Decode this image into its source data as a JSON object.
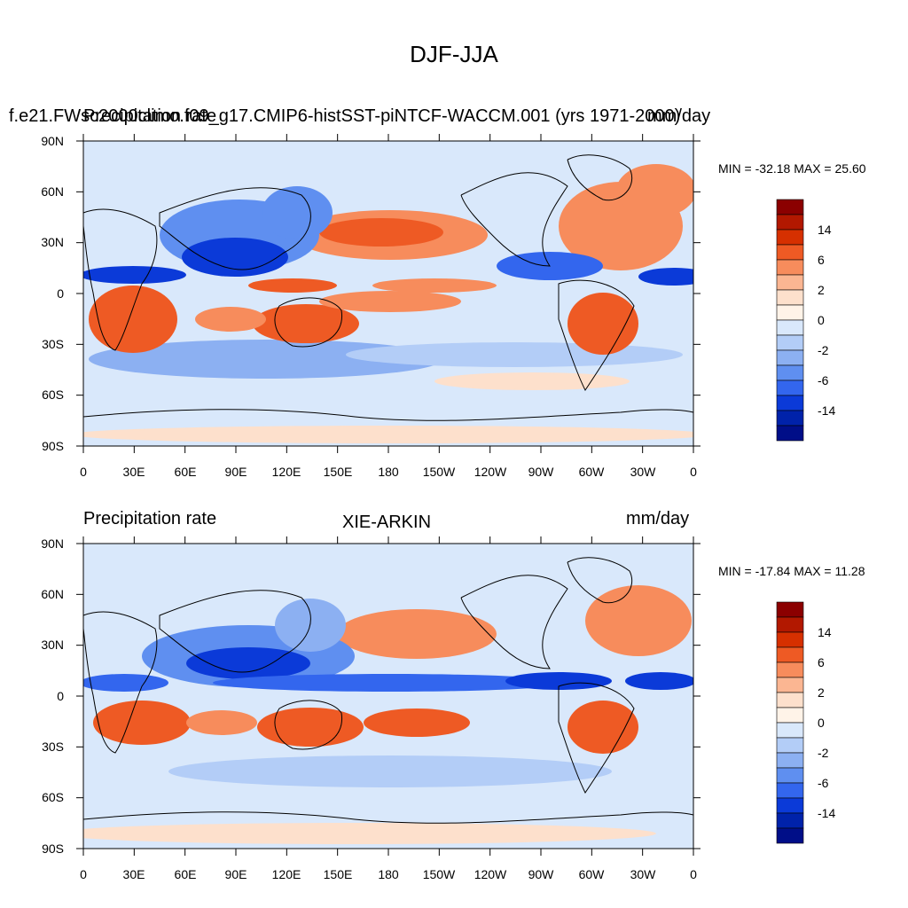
{
  "title": "DJF-JJA",
  "units_note": "mm/day",
  "panels": [
    {
      "id": "model",
      "left_label": "Precipitation rate",
      "center_label": "f.e21.FWsc2000climo.f09_g17.CMIP6-histSST-piNTCF-WACCM.001 (yrs 1971-2000)",
      "right_label": "mm/day",
      "stats": "MIN = -32.18 MAX =  25.60",
      "min": -32.18,
      "max": 25.6
    },
    {
      "id": "obs",
      "left_label": "Precipitation rate",
      "center_label": "XIE-ARKIN",
      "right_label": "mm/day",
      "stats": "MIN = -17.84 MAX =  11.28",
      "min": -17.84,
      "max": 11.28
    }
  ],
  "axes": {
    "lat_labels": [
      "90N",
      "60N",
      "30N",
      "0",
      "30S",
      "60S",
      "90S"
    ],
    "lon_labels": [
      "0",
      "30E",
      "60E",
      "90E",
      "120E",
      "150E",
      "180",
      "150W",
      "120W",
      "90W",
      "60W",
      "30W",
      "0"
    ]
  },
  "colorbar": {
    "labels": [
      "14",
      "6",
      "2",
      "0",
      "-2",
      "-6",
      "-14"
    ],
    "colors": [
      "#8b0000",
      "#b21800",
      "#d63000",
      "#ee5a24",
      "#f78c5c",
      "#fbb692",
      "#fde0cc",
      "#fff3e8",
      "#d9e8fb",
      "#b3cdf7",
      "#8cb0f2",
      "#5f8ff0",
      "#3366ee",
      "#0b3ad8",
      "#0022aa",
      "#000e88"
    ]
  }
}
